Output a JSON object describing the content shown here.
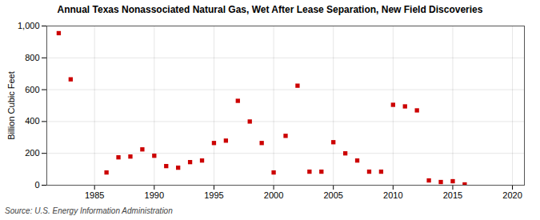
{
  "chart_data": {
    "type": "scatter",
    "title": "Annual Texas Nonassociated Natural Gas, Wet After Lease Separation, New Field Discoveries",
    "ylabel": "Billion Cubic Feet",
    "source": "Source: U.S. Energy Information Administration",
    "x": [
      1982,
      1983,
      1986,
      1987,
      1988,
      1989,
      1990,
      1991,
      1992,
      1993,
      1994,
      1995,
      1996,
      1997,
      1998,
      1999,
      2000,
      2001,
      2002,
      2003,
      2004,
      2005,
      2006,
      2007,
      2008,
      2009,
      2010,
      2011,
      2012,
      2013,
      2014,
      2015,
      2016
    ],
    "values": [
      955,
      665,
      80,
      175,
      180,
      225,
      185,
      120,
      110,
      145,
      155,
      265,
      280,
      530,
      400,
      265,
      80,
      310,
      625,
      85,
      85,
      270,
      200,
      155,
      85,
      85,
      505,
      495,
      470,
      30,
      20,
      25,
      5
    ],
    "color": "#cc0000",
    "marker": "square",
    "xlim": [
      1981,
      2021
    ],
    "xticks": [
      1985,
      1990,
      1995,
      2000,
      2005,
      2010,
      2015,
      2020
    ],
    "ylim": [
      0,
      1000
    ],
    "yticks": [
      0,
      200,
      400,
      600,
      800,
      {
        "value": 1000,
        "label": "1,000"
      }
    ],
    "grid": true
  }
}
